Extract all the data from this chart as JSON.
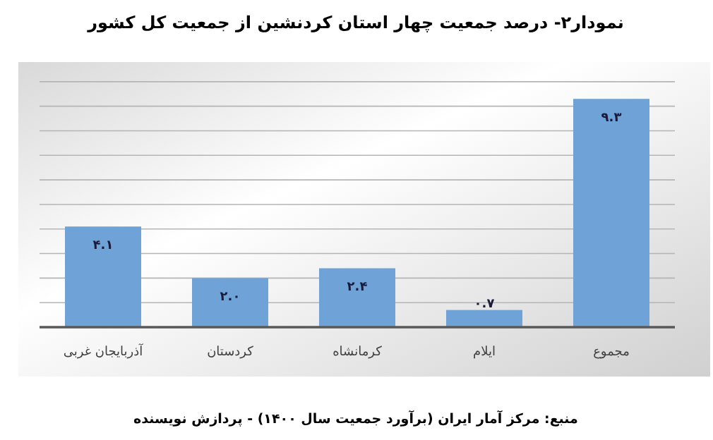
{
  "chart_data": {
    "type": "bar",
    "title": "نمودار۲- درصد جمعیت چهار استان کردنشین از جمعیت کل کشور",
    "categories": [
      "آذربایجان غربی",
      "کردستان",
      "کرمانشاه",
      "ایلام",
      "مجموع"
    ],
    "values": [
      4.1,
      2.0,
      2.4,
      0.7,
      9.3
    ],
    "value_labels": [
      "۴.۱",
      "۲.۰",
      "۲.۴",
      "۰.۷",
      "۹.۳"
    ],
    "color": "#6fa3d8",
    "ylim": [
      0,
      10.8
    ],
    "yticks": [
      {
        "value": 0,
        "label": null
      },
      {
        "value": 1,
        "label": null
      },
      {
        "value": 2,
        "label": null
      },
      {
        "value": 3,
        "label": null
      },
      {
        "value": 4,
        "label": null
      },
      {
        "value": 5,
        "label": null
      },
      {
        "value": 6,
        "label": null
      },
      {
        "value": 7,
        "label": null
      },
      {
        "value": 8,
        "label": null
      },
      {
        "value": 9,
        "label": null
      },
      {
        "value": 10,
        "label": null
      }
    ],
    "grid": "y",
    "annotations": [
      "منبع: مرکز آمار ایران (برآورد جمعیت سال ۱۴۰۰) - پردازش نویسنده"
    ]
  }
}
